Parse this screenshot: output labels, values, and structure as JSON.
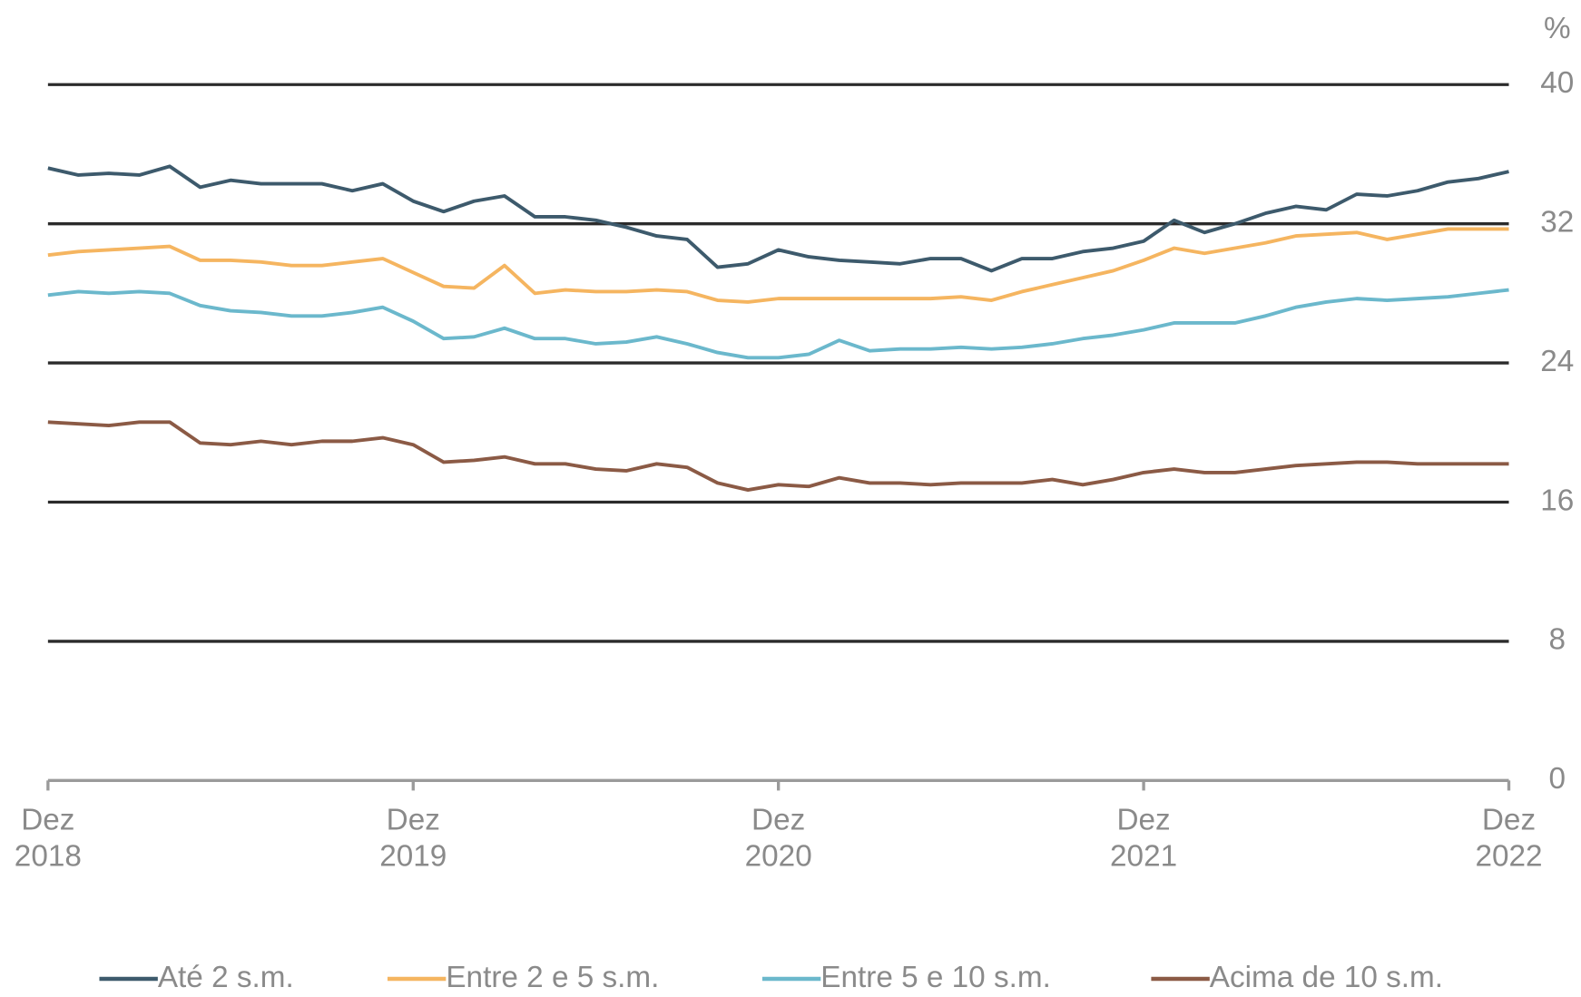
{
  "chart_data": {
    "type": "line",
    "y_unit": "%",
    "categories": [
      "Dez 2018",
      null,
      null,
      null,
      null,
      null,
      null,
      null,
      null,
      null,
      null,
      null,
      "Dez 2019",
      null,
      null,
      null,
      null,
      null,
      null,
      null,
      null,
      null,
      null,
      null,
      "Dez 2020",
      null,
      null,
      null,
      null,
      null,
      null,
      null,
      null,
      null,
      null,
      null,
      "Dez 2021",
      null,
      null,
      null,
      null,
      null,
      null,
      null,
      null,
      null,
      null,
      null,
      "Dez 2022"
    ],
    "ylim": [
      0,
      40
    ],
    "yticks": [
      0,
      8,
      16,
      24,
      32,
      40
    ],
    "grid": true,
    "legend": "bottom",
    "series": [
      {
        "name": "Até 2 s.m.",
        "color": "#3d5a6c",
        "values": [
          35.2,
          34.8,
          34.9,
          34.8,
          35.3,
          34.1,
          34.5,
          34.3,
          34.3,
          34.3,
          33.9,
          34.3,
          33.3,
          32.7,
          33.3,
          33.6,
          32.4,
          32.4,
          32.2,
          31.8,
          31.3,
          31.1,
          29.5,
          29.7,
          30.5,
          30.1,
          29.9,
          29.8,
          29.7,
          30.0,
          30.0,
          29.3,
          30.0,
          30.0,
          30.4,
          30.6,
          31.0,
          32.2,
          31.5,
          32.0,
          32.6,
          33.0,
          32.8,
          33.7,
          33.6,
          33.9,
          34.4,
          34.6,
          35.0
        ]
      },
      {
        "name": "Entre 2 e 5 s.m.",
        "color": "#f5b560",
        "values": [
          30.2,
          30.4,
          30.5,
          30.6,
          30.7,
          29.9,
          29.9,
          29.8,
          29.6,
          29.6,
          29.8,
          30.0,
          29.2,
          28.4,
          28.3,
          29.6,
          28.0,
          28.2,
          28.1,
          28.1,
          28.2,
          28.1,
          27.6,
          27.5,
          27.7,
          27.7,
          27.7,
          27.7,
          27.7,
          27.7,
          27.8,
          27.6,
          28.1,
          28.5,
          28.9,
          29.3,
          29.9,
          30.6,
          30.3,
          30.6,
          30.9,
          31.3,
          31.4,
          31.5,
          31.1,
          31.4,
          31.7,
          31.7,
          31.7
        ]
      },
      {
        "name": "Entre 5 e 10 s.m.",
        "color": "#6bb8cc",
        "values": [
          27.9,
          28.1,
          28.0,
          28.1,
          28.0,
          27.3,
          27.0,
          26.9,
          26.7,
          26.7,
          26.9,
          27.2,
          26.4,
          25.4,
          25.5,
          26.0,
          25.4,
          25.4,
          25.1,
          25.2,
          25.5,
          25.1,
          24.6,
          24.3,
          24.3,
          24.5,
          25.3,
          24.7,
          24.8,
          24.8,
          24.9,
          24.8,
          24.9,
          25.1,
          25.4,
          25.6,
          25.9,
          26.3,
          26.3,
          26.3,
          26.7,
          27.2,
          27.5,
          27.7,
          27.6,
          27.7,
          27.8,
          28.0,
          28.2
        ]
      },
      {
        "name": "Acima de 10 s.m.",
        "color": "#8b5a45",
        "values": [
          20.6,
          20.5,
          20.4,
          20.6,
          20.6,
          19.4,
          19.3,
          19.5,
          19.3,
          19.5,
          19.5,
          19.7,
          19.3,
          18.3,
          18.4,
          18.6,
          18.2,
          18.2,
          17.9,
          17.8,
          18.2,
          18.0,
          17.1,
          16.7,
          17.0,
          16.9,
          17.4,
          17.1,
          17.1,
          17.0,
          17.1,
          17.1,
          17.1,
          17.3,
          17.0,
          17.3,
          17.7,
          17.9,
          17.7,
          17.7,
          17.9,
          18.1,
          18.2,
          18.3,
          18.3,
          18.2,
          18.2,
          18.2,
          18.2
        ]
      }
    ]
  }
}
